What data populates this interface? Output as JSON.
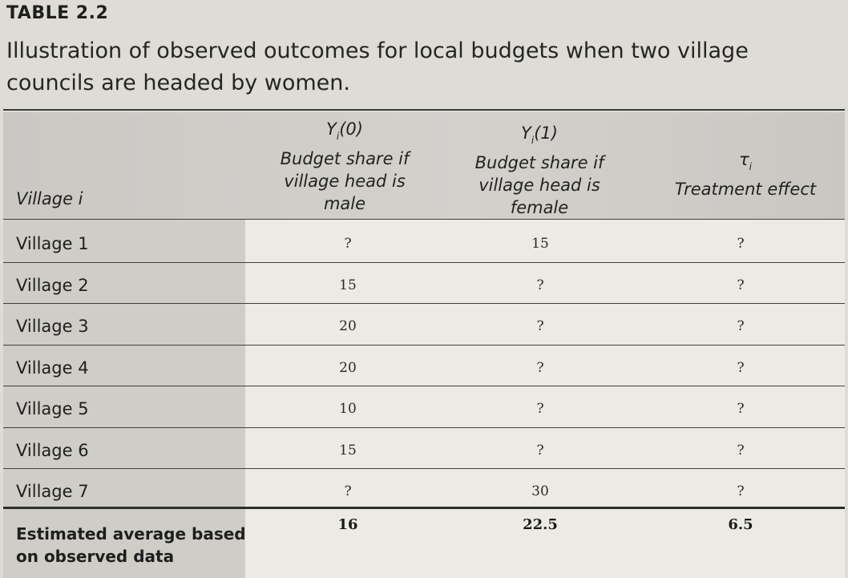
{
  "table_label": "TABLE 2.2",
  "caption": "Illustration of observed outcomes for local budgets when two village councils are headed by women.",
  "headers": {
    "village": "Village i",
    "y0_symbol": "Y",
    "y0_sub": "i",
    "y0_arg": "(0)",
    "y0_desc": "Budget share if village head is male",
    "y1_symbol": "Y",
    "y1_sub": "i",
    "y1_arg": "(1)",
    "y1_desc": "Budget share if village head is female",
    "tau_symbol": "τ",
    "tau_sub": "i",
    "tau_desc": "Treatment effect"
  },
  "rows": [
    {
      "village": "Village 1",
      "y0": "?",
      "y1": "15",
      "tau": "?"
    },
    {
      "village": "Village 2",
      "y0": "15",
      "y1": "?",
      "tau": "?"
    },
    {
      "village": "Village 3",
      "y0": "20",
      "y1": "?",
      "tau": "?"
    },
    {
      "village": "Village 4",
      "y0": "20",
      "y1": "?",
      "tau": "?"
    },
    {
      "village": "Village 5",
      "y0": "10",
      "y1": "?",
      "tau": "?"
    },
    {
      "village": "Village 6",
      "y0": "15",
      "y1": "?",
      "tau": "?"
    },
    {
      "village": "Village 7",
      "y0": "?",
      "y1": "30",
      "tau": "?"
    }
  ],
  "average": {
    "label": "Estimated average based on observed data",
    "y0": "16",
    "y1": "22.5",
    "tau": "6.5"
  }
}
